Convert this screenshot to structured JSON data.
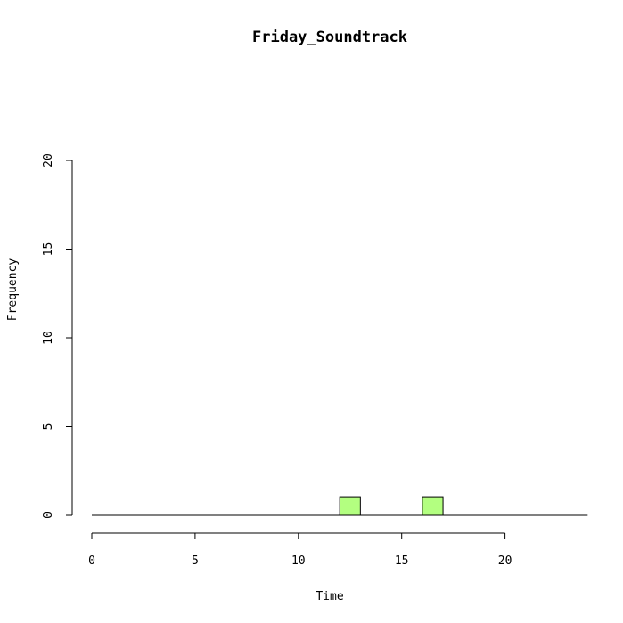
{
  "chart_data": {
    "type": "bar",
    "title": "Friday_Soundtrack",
    "xlabel": "Time",
    "ylabel": "Frequency",
    "xlim": [
      0,
      24
    ],
    "ylim": [
      0,
      20
    ],
    "x_ticks": [
      0,
      5,
      10,
      15,
      20
    ],
    "y_ticks": [
      0,
      5,
      10,
      15,
      20
    ],
    "bar_color": "#b3ff80",
    "bins": [
      {
        "x0": 12,
        "x1": 13,
        "count": 1
      },
      {
        "x0": 16,
        "x1": 17,
        "count": 1
      }
    ]
  }
}
